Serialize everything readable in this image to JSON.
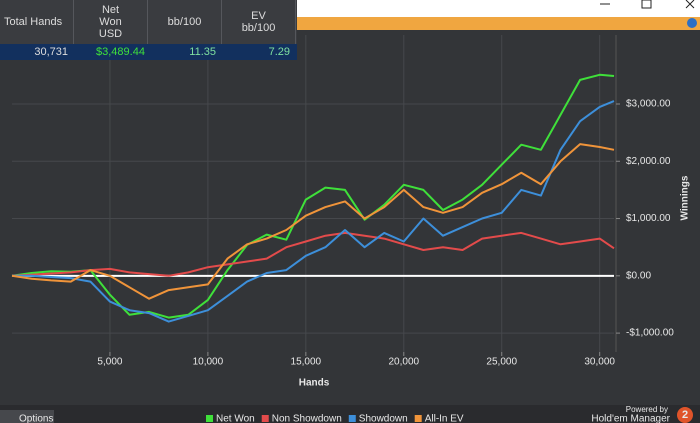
{
  "table": {
    "columns": [
      "Total Hands",
      "Net Won USD",
      "bb/100",
      "EV bb/100"
    ],
    "rows": [
      [
        "30,731",
        "$3,489.44",
        "11.35",
        "7.29"
      ]
    ]
  },
  "chart_data": {
    "type": "line",
    "xlabel": "Hands",
    "ylabel": "Winnings",
    "x": [
      0,
      1000,
      2000,
      3000,
      4000,
      5000,
      6000,
      7000,
      8000,
      9000,
      10000,
      11000,
      12000,
      13000,
      14000,
      15000,
      16000,
      17000,
      18000,
      19000,
      20000,
      21000,
      22000,
      23000,
      24000,
      25000,
      26000,
      27000,
      28000,
      29000,
      30000,
      30731
    ],
    "series": [
      {
        "name": "Net Won",
        "color": "#3fe03a",
        "values": [
          0,
          50,
          80,
          70,
          100,
          -330,
          -680,
          -630,
          -730,
          -680,
          -420,
          100,
          540,
          720,
          630,
          1330,
          1540,
          1500,
          980,
          1240,
          1590,
          1500,
          1150,
          1330,
          1590,
          1940,
          2290,
          2200,
          2810,
          3420,
          3510,
          3489.44
        ]
      },
      {
        "name": "Non Showdown",
        "color": "#e34b4b",
        "values": [
          0,
          20,
          40,
          60,
          100,
          120,
          60,
          30,
          0,
          60,
          150,
          200,
          250,
          300,
          500,
          600,
          700,
          750,
          700,
          650,
          550,
          450,
          500,
          450,
          650,
          700,
          750,
          650,
          550,
          600,
          650,
          480
        ]
      },
      {
        "name": "Showdown",
        "color": "#3d8fda",
        "values": [
          0,
          0,
          -20,
          -40,
          -100,
          -450,
          -600,
          -650,
          -800,
          -700,
          -600,
          -350,
          -100,
          50,
          100,
          350,
          500,
          800,
          500,
          750,
          600,
          1000,
          700,
          850,
          1000,
          1100,
          1500,
          1400,
          2200,
          2700,
          2950,
          3050
        ]
      },
      {
        "name": "All-In EV",
        "color": "#f0943a",
        "values": [
          0,
          -50,
          -80,
          -100,
          100,
          0,
          -200,
          -400,
          -250,
          -200,
          -150,
          300,
          550,
          650,
          800,
          1050,
          1200,
          1300,
          1000,
          1200,
          1500,
          1200,
          1100,
          1200,
          1450,
          1600,
          1800,
          1600,
          2000,
          2300,
          2250,
          2200
        ]
      }
    ],
    "xlim": [
      0,
      30731
    ],
    "ylim": [
      -1330,
      4030
    ],
    "xticks": [
      {
        "value": 5000,
        "label": "5,000"
      },
      {
        "value": 10000,
        "label": "10,000"
      },
      {
        "value": 15000,
        "label": "15,000"
      },
      {
        "value": 20000,
        "label": "20,000"
      },
      {
        "value": 25000,
        "label": "25,000"
      },
      {
        "value": 30000,
        "label": "30,000"
      }
    ],
    "yticks": [
      {
        "value": 3000,
        "label": "$3,000.00"
      },
      {
        "value": 2000,
        "label": "$2,000.00"
      },
      {
        "value": 1000,
        "label": "$1,000.00"
      },
      {
        "value": 0,
        "label": "$0.00"
      },
      {
        "value": -1000,
        "label": "-$1,000.00"
      }
    ],
    "grid": true
  },
  "footer": {
    "options": "Options",
    "powered_by": "Powered by",
    "brand": "Hold'em Manager",
    "badge": "2"
  }
}
